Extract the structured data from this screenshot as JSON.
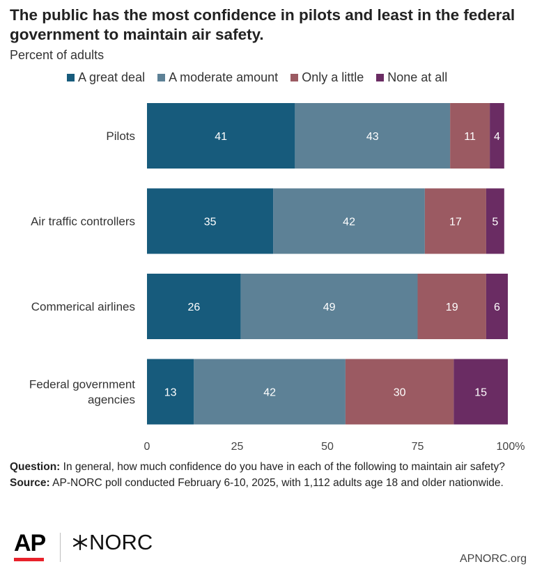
{
  "title": "The public has the most confidence in pilots and least in the federal government to maintain air safety.",
  "subtitle": "Percent of adults",
  "colors": {
    "great_deal": "#175b7c",
    "moderate": "#5d8196",
    "little": "#9b5a62",
    "none": "#6a2c63"
  },
  "chart_data": {
    "type": "bar",
    "orientation": "horizontal",
    "stacked": true,
    "categories": [
      "Pilots",
      "Air traffic controllers",
      "Commerical airlines",
      "Federal government agencies"
    ],
    "series": [
      {
        "name": "A great deal",
        "color": "#175b7c",
        "values": [
          41,
          35,
          26,
          13
        ]
      },
      {
        "name": "A moderate amount",
        "color": "#5d8196",
        "values": [
          43,
          42,
          49,
          42
        ]
      },
      {
        "name": "Only a little",
        "color": "#9b5a62",
        "values": [
          11,
          17,
          19,
          30
        ]
      },
      {
        "name": "None at all",
        "color": "#6a2c63",
        "values": [
          4,
          5,
          6,
          15
        ]
      }
    ],
    "xlim": [
      0,
      100
    ],
    "xticks": [
      0,
      25,
      50,
      75,
      100
    ],
    "xtick_labels": [
      "0",
      "25",
      "50",
      "75",
      "100%"
    ],
    "legend": "top",
    "grid": false
  },
  "notes": {
    "question_label": "Question:",
    "question": "In general, how much confidence do you have in each of the following to maintain air safety?",
    "source_label": "Source:",
    "source": "AP-NORC poll conducted February 6-10, 2025, with 1,112 adults age 18 and older nationwide."
  },
  "footer": {
    "ap_logo": "AP",
    "norc_logo": "NORC",
    "site": "APNORC.org"
  }
}
